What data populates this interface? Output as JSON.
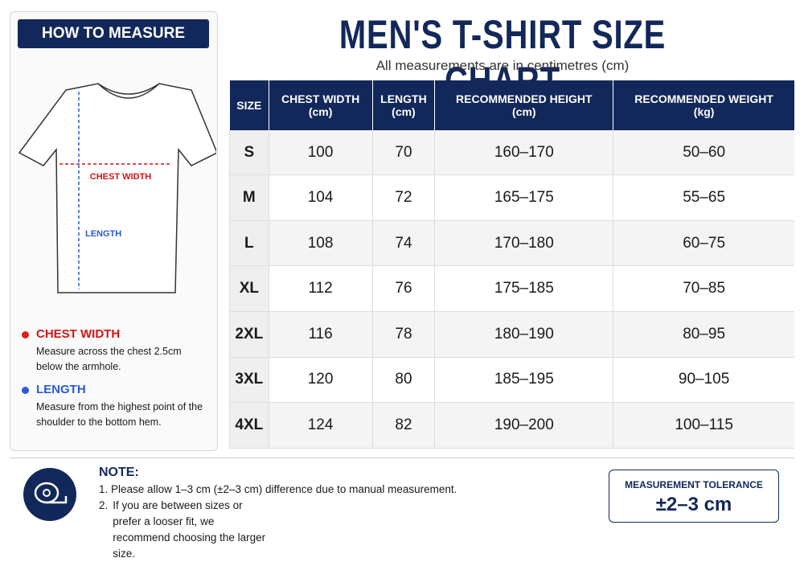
{
  "sidebar": {
    "title": "HOW TO MEASURE",
    "diagram": {
      "chest": "CHEST WIDTH",
      "length": "LENGTH"
    },
    "items": [
      {
        "title": "CHEST WIDTH",
        "text": "Measure across the chest 2.5cm below the armhole."
      },
      {
        "title": "LENGTH",
        "text": "Measure from the highest point of the shoulder to the bottom hem."
      }
    ]
  },
  "header": {
    "title": "MEN'S T-SHIRT SIZE CHART",
    "subtitle": "All measurements are in centimetres (cm)"
  },
  "table": {
    "headers": [
      "SIZE",
      "CHEST WIDTH\n(cm)",
      "LENGTH\n(cm)",
      "RECOMMENDED HEIGHT\n(cm)",
      "RECOMMENDED WEIGHT\n(kg)"
    ],
    "rows": [
      [
        "S",
        "100",
        "70",
        "160–170",
        "50–60"
      ],
      [
        "M",
        "104",
        "72",
        "165–175",
        "55–65"
      ],
      [
        "L",
        "108",
        "74",
        "170–180",
        "60–75"
      ],
      [
        "XL",
        "112",
        "76",
        "175–185",
        "70–85"
      ],
      [
        "2XL",
        "116",
        "78",
        "180–190",
        "80–95"
      ],
      [
        "3XL",
        "120",
        "80",
        "185–195",
        "90–105"
      ],
      [
        "4XL",
        "124",
        "82",
        "190–200",
        "100–115"
      ]
    ]
  },
  "note": {
    "title": "NOTE:",
    "items": [
      {
        "marker": "1.",
        "text": "Please allow 1–3 cm (±2–3 cm) difference due to manual measurement."
      },
      {
        "marker": "2.",
        "text": "If you are between sizes or prefer a looser fit, we recommend choosing the larger size."
      }
    ]
  },
  "tolerance": {
    "label": "MEASUREMENT TOLERANCE",
    "value": "±2–3 cm"
  }
}
